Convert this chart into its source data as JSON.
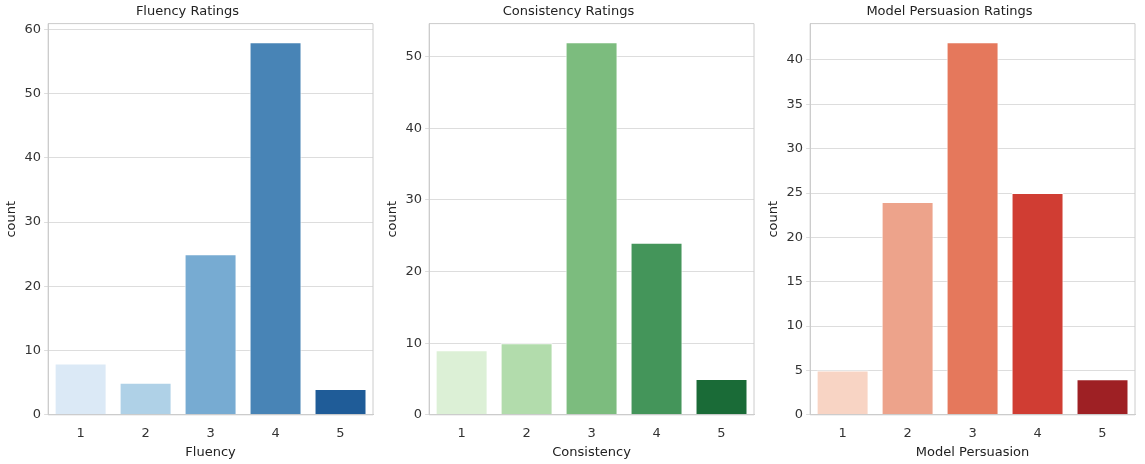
{
  "chart_data": [
    {
      "type": "bar",
      "title": "Fluency Ratings",
      "xlabel": "Fluency",
      "ylabel": "count",
      "categories": [
        "1",
        "2",
        "3",
        "4",
        "5"
      ],
      "values": [
        8,
        5,
        25,
        58,
        4
      ],
      "colors": [
        "#dbe9f6",
        "#afd1e7",
        "#77abd2",
        "#4884b6",
        "#1f5c98"
      ],
      "ylim": [
        0,
        60.9
      ],
      "yticks": [
        0,
        10,
        20,
        30,
        40,
        50,
        60
      ],
      "grid": "y",
      "legend": false
    },
    {
      "type": "bar",
      "title": "Consistency Ratings",
      "xlabel": "Consistency",
      "ylabel": "count",
      "categories": [
        "1",
        "2",
        "3",
        "4",
        "5"
      ],
      "values": [
        9,
        10,
        52,
        24,
        5
      ],
      "colors": [
        "#dcf0d6",
        "#b2dcac",
        "#7cbc7e",
        "#44955a",
        "#1a6b37"
      ],
      "ylim": [
        0,
        54.6
      ],
      "yticks": [
        0,
        10,
        20,
        30,
        40,
        50
      ],
      "grid": "y",
      "legend": false
    },
    {
      "type": "bar",
      "title": "Model Persuasion Ratings",
      "xlabel": "Model Persuasion",
      "ylabel": "count",
      "categories": [
        "1",
        "2",
        "3",
        "4",
        "5"
      ],
      "values": [
        5,
        24,
        42,
        25,
        4
      ],
      "colors": [
        "#f8d4c4",
        "#eda38b",
        "#e5785c",
        "#d03d33",
        "#9e2024"
      ],
      "ylim": [
        0,
        44.1
      ],
      "yticks": [
        0,
        5,
        10,
        15,
        20,
        25,
        30,
        35,
        40
      ],
      "grid": "y",
      "legend": false
    }
  ]
}
